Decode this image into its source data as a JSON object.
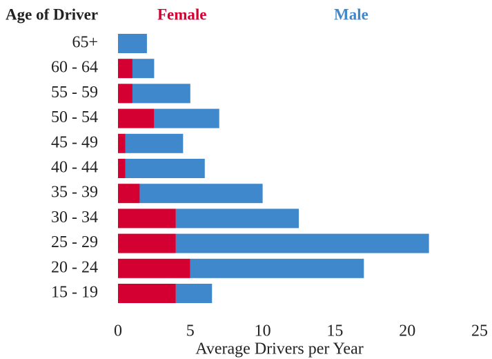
{
  "chart_data": {
    "type": "stacked-barh",
    "y_label": "Age of Driver",
    "x_label": "Average Drivers per Year",
    "categories": [
      "65+",
      "60 - 64",
      "55 - 59",
      "50 - 54",
      "45 - 49",
      "40 - 44",
      "35 - 39",
      "30 - 34",
      "25 - 29",
      "20 - 24",
      "15 - 19"
    ],
    "series": [
      {
        "name": "Female",
        "color": "#d50032",
        "values": [
          0,
          1,
          1,
          2.5,
          0.5,
          0.5,
          1.5,
          4,
          4,
          5,
          4
        ]
      },
      {
        "name": "Male",
        "color": "#3f88cc",
        "values": [
          2,
          1.5,
          4,
          4.5,
          4,
          5.5,
          8.5,
          8.5,
          17.5,
          12,
          2.5
        ]
      }
    ],
    "xlim": [
      0,
      25
    ],
    "xticks": [
      0,
      5,
      10,
      15,
      20,
      25
    ],
    "grid": false
  }
}
